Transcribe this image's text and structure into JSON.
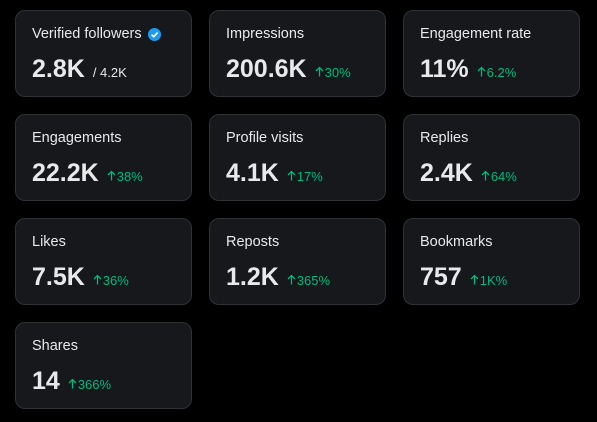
{
  "cards": [
    {
      "label": "Verified followers",
      "value": "2.8K",
      "total": "/ 4.2K",
      "verified": true
    },
    {
      "label": "Impressions",
      "value": "200.6K",
      "change": "30%"
    },
    {
      "label": "Engagement rate",
      "value": "11%",
      "change": "6.2%"
    },
    {
      "label": "Engagements",
      "value": "22.2K",
      "change": "38%"
    },
    {
      "label": "Profile visits",
      "value": "4.1K",
      "change": "17%"
    },
    {
      "label": "Replies",
      "value": "2.4K",
      "change": "64%"
    },
    {
      "label": "Likes",
      "value": "7.5K",
      "change": "36%"
    },
    {
      "label": "Reposts",
      "value": "1.2K",
      "change": "365%"
    },
    {
      "label": "Bookmarks",
      "value": "757",
      "change": "1K%"
    },
    {
      "label": "Shares",
      "value": "14",
      "change": "366%"
    }
  ]
}
